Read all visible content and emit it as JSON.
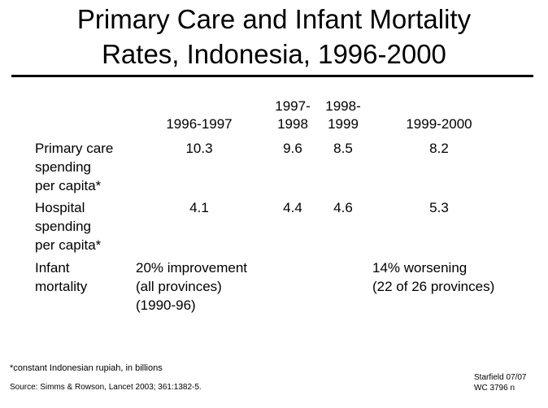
{
  "slide": {
    "title_line1": "Primary Care and Infant Mortality",
    "title_line2": "Rates, Indonesia, 1996-2000"
  },
  "table": {
    "columns": [
      {
        "line1": "",
        "line2": "1996-1997"
      },
      {
        "line1": "1997-",
        "line2": "1998"
      },
      {
        "line1": "1998-",
        "line2": "1999"
      },
      {
        "line1": "",
        "line2": "1999-2000"
      }
    ],
    "rows": [
      {
        "label": "Primary care\nspending\nper capita*",
        "values": [
          "10.3",
          "9.6",
          "8.5",
          "8.2"
        ]
      },
      {
        "label": "Hospital\nspending\nper capita*",
        "values": [
          "4.1",
          "4.4",
          "4.6",
          "5.3"
        ]
      }
    ],
    "infant_mortality": {
      "label": "Infant\nmortality",
      "left_note": "20% improvement\n(all provinces)\n(1990-96)",
      "right_note": "14% worsening\n(22 of 26 provinces)"
    }
  },
  "footer": {
    "footnote": "*constant Indonesian rupiah, in billions",
    "source": "Source: Simms & Rowson, Lancet 2003; 361:1382-5.",
    "credit_line1": "Starfield 07/07",
    "credit_line2": "WC 3796 n"
  }
}
